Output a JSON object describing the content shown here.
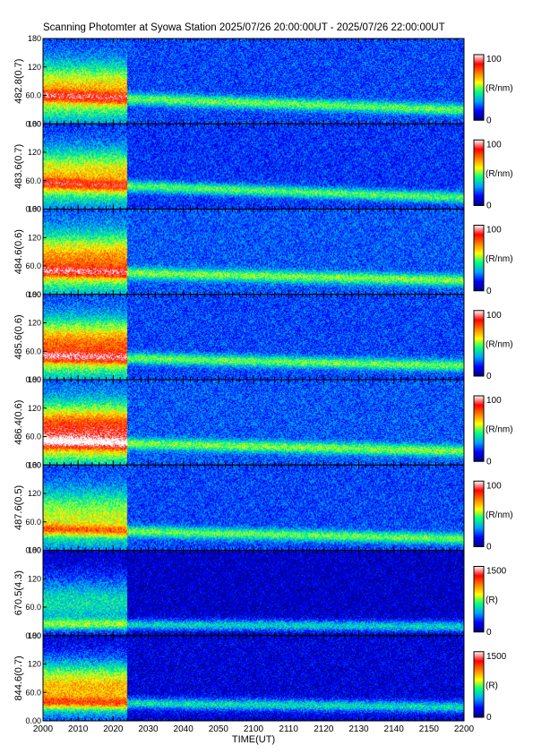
{
  "title": "Scanning Photomter at Syowa Station 2025/07/26 20:00:00UT - 2025/07/26 22:00:00UT",
  "chart_data": {
    "type": "heatmap",
    "title": "Scanning Photomter at Syowa Station 2025/07/26 20:00:00UT - 2025/07/26 22:00:00UT",
    "xlabel": "TIME(UT)",
    "x_tick_labels": [
      "2000",
      "2010",
      "2020",
      "2030",
      "2040",
      "2050",
      "2100",
      "2110",
      "2120",
      "2130",
      "2140",
      "2150",
      "2200"
    ],
    "y_tick_labels": [
      "0.00",
      "60.0",
      "120",
      "180"
    ],
    "ylim": [
      0,
      180
    ],
    "colormap": [
      "#000080",
      "#0000ff",
      "#00a0ff",
      "#00ff80",
      "#ffff00",
      "#ff8000",
      "#ff0000",
      "#ffffff"
    ],
    "panels": [
      {
        "ylabel": "482.8(0.7)",
        "cbar_max": "100",
        "cbar_min": "0",
        "cbar_unit": "(R/nm)",
        "arc_start_y": 60,
        "arc_end_y": 30,
        "early_intensity": 0.45,
        "background": 0.2
      },
      {
        "ylabel": "483.6(0.7)",
        "cbar_max": "100",
        "cbar_min": "0",
        "cbar_unit": "(R/nm)",
        "arc_start_y": 55,
        "arc_end_y": 25,
        "early_intensity": 0.45,
        "background": 0.18
      },
      {
        "ylabel": "484.6(0.6)",
        "cbar_max": "100",
        "cbar_min": "0",
        "cbar_unit": "(R/nm)",
        "arc_start_y": 50,
        "arc_end_y": 30,
        "early_intensity": 0.5,
        "background": 0.22
      },
      {
        "ylabel": "485.6(0.6)",
        "cbar_max": "100",
        "cbar_min": "0",
        "cbar_unit": "(R/nm)",
        "arc_start_y": 50,
        "arc_end_y": 30,
        "early_intensity": 0.55,
        "background": 0.2
      },
      {
        "ylabel": "486.4(0.6)",
        "cbar_max": "100",
        "cbar_min": "0",
        "cbar_unit": "(R/nm)",
        "arc_start_y": 50,
        "arc_end_y": 30,
        "early_intensity": 0.65,
        "background": 0.22
      },
      {
        "ylabel": "487.6(0.5)",
        "cbar_max": "100",
        "cbar_min": "0",
        "cbar_unit": "(R/nm)",
        "arc_start_y": 45,
        "arc_end_y": 25,
        "early_intensity": 0.35,
        "background": 0.2
      },
      {
        "ylabel": "670.5(4.3)",
        "cbar_max": "1500",
        "cbar_min": "0",
        "cbar_unit": "(R)",
        "arc_start_y": 25,
        "arc_end_y": 20,
        "early_intensity": 0.3,
        "background": 0.08
      },
      {
        "ylabel": "844.6(0.7)",
        "cbar_max": "1500",
        "cbar_min": "0",
        "cbar_unit": "(R)",
        "arc_start_y": 40,
        "arc_end_y": 30,
        "early_intensity": 0.55,
        "background": 0.1
      }
    ]
  }
}
